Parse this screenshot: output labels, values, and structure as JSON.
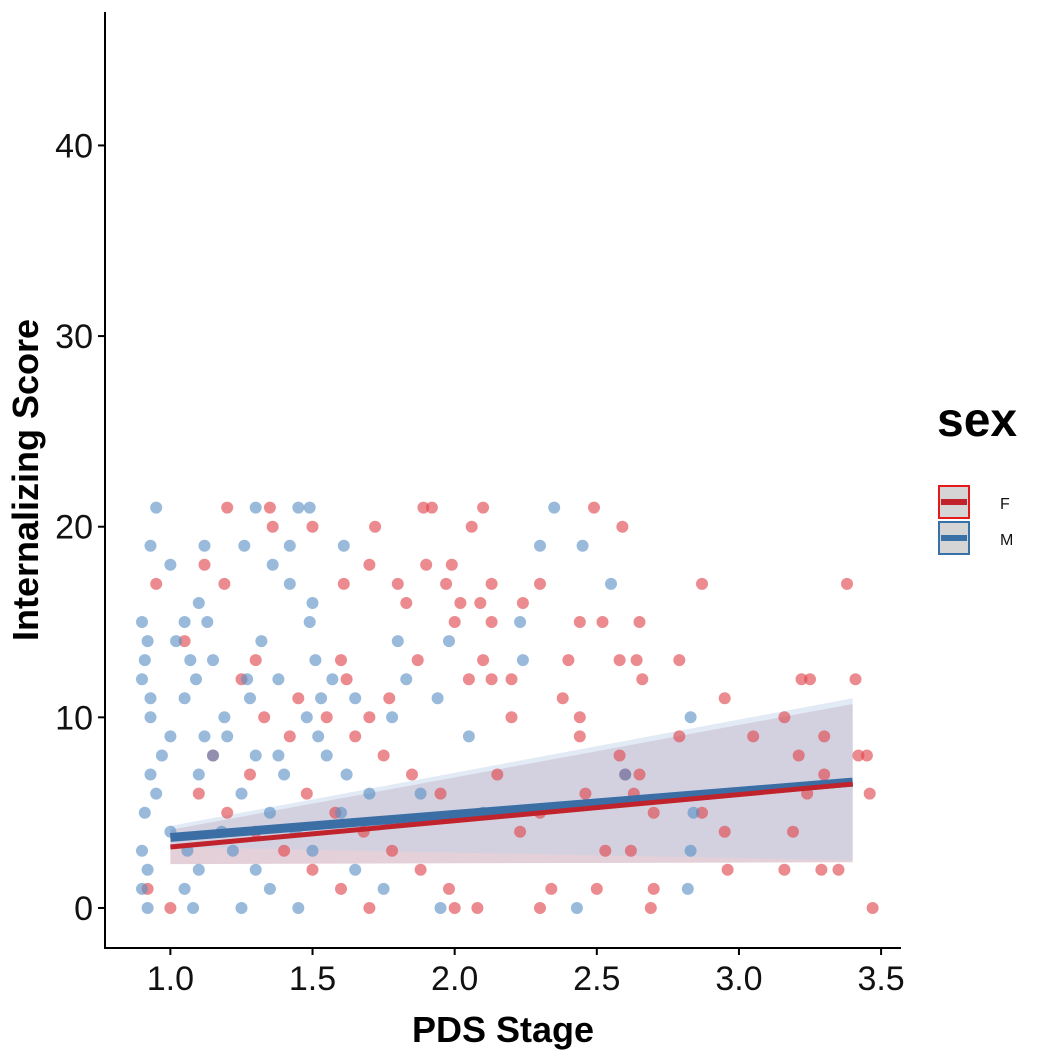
{
  "chart_data": {
    "type": "scatter",
    "xlabel": "PDS Stage",
    "ylabel": "Internalizing Score",
    "xlim": [
      0.77,
      3.57
    ],
    "ylim": [
      -2.1,
      47
    ],
    "xticks": [
      "1.0",
      "1.5",
      "2.0",
      "2.5",
      "3.0",
      "3.5"
    ],
    "xtick_values": [
      1.0,
      1.5,
      2.0,
      2.5,
      3.0,
      3.5
    ],
    "yticks": [
      "0",
      "10",
      "20",
      "30",
      "40"
    ],
    "ytick_values": [
      0,
      10,
      20,
      30,
      40
    ],
    "grid": false,
    "legend": {
      "title": "sex",
      "position": "right",
      "entries": [
        {
          "label": "F",
          "color": "#e31a1c"
        },
        {
          "label": "M",
          "color": "#3a70a8"
        }
      ]
    },
    "series": [
      {
        "name": "F",
        "color": "#e31a1c",
        "point_color": "#e0434b",
        "fit_line": {
          "x": [
            1.0,
            3.4
          ],
          "y": [
            3.2,
            6.5
          ]
        },
        "ci_band": {
          "x": [
            1.0,
            3.4
          ],
          "lower": [
            2.3,
            2.4
          ],
          "upper": [
            4.1,
            10.7
          ]
        },
        "points": [
          [
            1.35,
            21
          ],
          [
            1.2,
            21
          ],
          [
            1.89,
            21
          ],
          [
            1.92,
            21
          ],
          [
            2.1,
            21
          ],
          [
            2.49,
            21
          ],
          [
            1.36,
            20
          ],
          [
            1.72,
            20
          ],
          [
            2.06,
            20
          ],
          [
            2.59,
            20
          ],
          [
            1.5,
            20
          ],
          [
            0.95,
            17
          ],
          [
            1.19,
            17
          ],
          [
            1.61,
            17
          ],
          [
            1.8,
            17
          ],
          [
            1.97,
            17
          ],
          [
            2.13,
            17
          ],
          [
            2.3,
            17
          ],
          [
            2.87,
            17
          ],
          [
            3.38,
            17
          ],
          [
            1.12,
            18
          ],
          [
            1.7,
            18
          ],
          [
            1.9,
            18
          ],
          [
            1.99,
            18
          ],
          [
            2.09,
            16
          ],
          [
            1.83,
            16
          ],
          [
            2.02,
            16
          ],
          [
            2.24,
            16
          ],
          [
            2.0,
            15
          ],
          [
            2.44,
            15
          ],
          [
            2.52,
            15
          ],
          [
            2.65,
            15
          ],
          [
            2.13,
            15
          ],
          [
            1.3,
            13
          ],
          [
            1.6,
            13
          ],
          [
            1.87,
            13
          ],
          [
            2.1,
            13
          ],
          [
            2.4,
            13
          ],
          [
            2.58,
            13
          ],
          [
            2.64,
            13
          ],
          [
            2.79,
            13
          ],
          [
            2.05,
            12
          ],
          [
            2.13,
            12
          ],
          [
            2.2,
            12
          ],
          [
            2.66,
            12
          ],
          [
            3.22,
            12
          ],
          [
            3.25,
            12
          ],
          [
            3.41,
            12
          ],
          [
            2.38,
            11
          ],
          [
            2.95,
            11
          ],
          [
            1.7,
            10
          ],
          [
            2.2,
            10
          ],
          [
            2.44,
            10
          ],
          [
            3.16,
            10
          ],
          [
            2.79,
            9
          ],
          [
            3.05,
            9
          ],
          [
            3.3,
            9
          ],
          [
            2.44,
            9
          ],
          [
            2.58,
            8
          ],
          [
            3.21,
            8
          ],
          [
            3.42,
            8
          ],
          [
            3.45,
            8
          ],
          [
            2.6,
            7
          ],
          [
            2.65,
            7
          ],
          [
            3.3,
            7
          ],
          [
            2.15,
            7
          ],
          [
            2.46,
            6
          ],
          [
            2.63,
            6
          ],
          [
            3.46,
            6
          ],
          [
            3.24,
            6
          ],
          [
            2.3,
            5
          ],
          [
            2.7,
            5
          ],
          [
            2.87,
            5
          ],
          [
            2.95,
            4
          ],
          [
            2.23,
            4
          ],
          [
            3.19,
            4
          ],
          [
            2.53,
            3
          ],
          [
            2.62,
            3
          ],
          [
            2.96,
            2
          ],
          [
            3.16,
            2
          ],
          [
            3.29,
            2
          ],
          [
            3.35,
            2
          ],
          [
            2.7,
            1
          ],
          [
            2.5,
            1
          ],
          [
            2.34,
            1
          ],
          [
            2.69,
            0
          ],
          [
            3.47,
            0
          ],
          [
            2.3,
            0
          ],
          [
            2.0,
            0
          ],
          [
            1.05,
            14
          ],
          [
            1.25,
            12
          ],
          [
            1.45,
            11
          ],
          [
            1.55,
            10
          ],
          [
            1.65,
            9
          ],
          [
            1.75,
            8
          ],
          [
            1.85,
            7
          ],
          [
            1.95,
            6
          ],
          [
            1.1,
            6
          ],
          [
            1.2,
            5
          ],
          [
            1.3,
            4
          ],
          [
            1.4,
            3
          ],
          [
            1.5,
            2
          ],
          [
            1.6,
            1
          ],
          [
            1.7,
            0
          ],
          [
            0.92,
            1
          ],
          [
            1.0,
            0
          ],
          [
            1.15,
            8
          ],
          [
            1.28,
            7
          ],
          [
            1.42,
            9
          ],
          [
            1.58,
            5
          ],
          [
            1.68,
            4
          ],
          [
            1.78,
            3
          ],
          [
            1.88,
            2
          ],
          [
            1.98,
            1
          ],
          [
            2.08,
            0
          ],
          [
            1.33,
            10
          ],
          [
            1.48,
            6
          ],
          [
            1.62,
            12
          ],
          [
            1.77,
            11
          ]
        ]
      },
      {
        "name": "M",
        "color": "#3a70a8",
        "point_color": "#5b8fc5",
        "fit_line": {
          "x": [
            1.0,
            3.4
          ],
          "y": [
            3.7,
            6.6
          ]
        },
        "ci_band": {
          "x": [
            1.0,
            3.4
          ],
          "lower": [
            3.2,
            2.5
          ],
          "upper": [
            4.3,
            11.0
          ]
        },
        "points": [
          [
            0.95,
            21
          ],
          [
            1.3,
            21
          ],
          [
            1.45,
            21
          ],
          [
            1.49,
            21
          ],
          [
            2.35,
            21
          ],
          [
            0.93,
            19
          ],
          [
            1.12,
            19
          ],
          [
            1.26,
            19
          ],
          [
            1.42,
            19
          ],
          [
            1.61,
            19
          ],
          [
            2.3,
            19
          ],
          [
            2.45,
            19
          ],
          [
            1.0,
            18
          ],
          [
            1.36,
            18
          ],
          [
            1.1,
            16
          ],
          [
            1.5,
            16
          ],
          [
            1.42,
            17
          ],
          [
            2.55,
            17
          ],
          [
            0.9,
            15
          ],
          [
            1.05,
            15
          ],
          [
            1.13,
            15
          ],
          [
            1.49,
            15
          ],
          [
            2.23,
            15
          ],
          [
            0.92,
            14
          ],
          [
            1.02,
            14
          ],
          [
            1.32,
            14
          ],
          [
            1.8,
            14
          ],
          [
            1.98,
            14
          ],
          [
            0.91,
            13
          ],
          [
            1.07,
            13
          ],
          [
            1.15,
            13
          ],
          [
            1.51,
            13
          ],
          [
            2.24,
            13
          ],
          [
            0.9,
            12
          ],
          [
            1.09,
            12
          ],
          [
            1.38,
            12
          ],
          [
            1.57,
            12
          ],
          [
            1.83,
            12
          ],
          [
            0.93,
            11
          ],
          [
            1.05,
            11
          ],
          [
            1.28,
            11
          ],
          [
            1.65,
            11
          ],
          [
            1.94,
            11
          ],
          [
            0.93,
            10
          ],
          [
            1.19,
            10
          ],
          [
            1.48,
            10
          ],
          [
            2.83,
            10
          ],
          [
            1.0,
            9
          ],
          [
            1.2,
            9
          ],
          [
            1.52,
            9
          ],
          [
            2.05,
            9
          ],
          [
            0.97,
            8
          ],
          [
            1.15,
            8
          ],
          [
            1.3,
            8
          ],
          [
            1.55,
            8
          ],
          [
            2.6,
            7
          ],
          [
            0.93,
            7
          ],
          [
            1.1,
            7
          ],
          [
            1.4,
            7
          ],
          [
            1.7,
            6
          ],
          [
            0.95,
            6
          ],
          [
            1.25,
            6
          ],
          [
            1.35,
            5
          ],
          [
            1.6,
            5
          ],
          [
            0.91,
            5
          ],
          [
            1.0,
            4
          ],
          [
            1.18,
            4
          ],
          [
            1.44,
            4
          ],
          [
            2.84,
            5
          ],
          [
            0.9,
            3
          ],
          [
            1.06,
            3
          ],
          [
            1.22,
            3
          ],
          [
            1.5,
            3
          ],
          [
            2.83,
            3
          ],
          [
            0.92,
            2
          ],
          [
            1.1,
            2
          ],
          [
            1.3,
            2
          ],
          [
            1.65,
            2
          ],
          [
            0.9,
            1
          ],
          [
            1.05,
            1
          ],
          [
            1.35,
            1
          ],
          [
            1.75,
            1
          ],
          [
            2.82,
            1
          ],
          [
            0.92,
            0
          ],
          [
            1.08,
            0
          ],
          [
            1.25,
            0
          ],
          [
            1.45,
            0
          ],
          [
            1.95,
            0
          ],
          [
            2.43,
            0
          ],
          [
            1.12,
            9
          ],
          [
            1.38,
            8
          ],
          [
            1.62,
            7
          ],
          [
            1.88,
            6
          ],
          [
            2.1,
            5
          ],
          [
            1.27,
            12
          ],
          [
            1.53,
            11
          ],
          [
            1.78,
            10
          ]
        ]
      }
    ]
  }
}
